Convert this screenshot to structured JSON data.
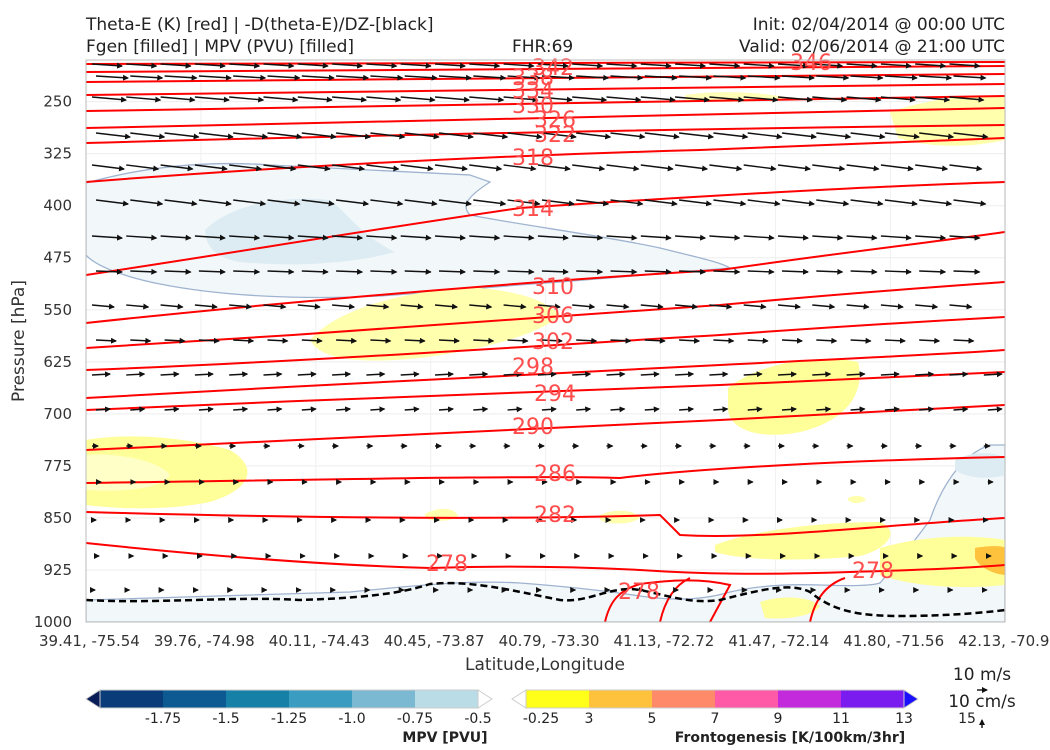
{
  "header": {
    "title_line1": "Theta-E (K) [red] | -D(theta-E)/DZ-[black]",
    "title_line2": "Fgen [filled] | MPV (PVU) [filled]",
    "fhr": "FHR:69",
    "init": "Init: 02/04/2014 @ 00:00 UTC",
    "valid": "Valid: 02/06/2014 @ 21:00 UTC"
  },
  "chart_data": {
    "type": "cross-section",
    "xlabel": "Latitude,Longitude",
    "ylabel": "Pressure [hPa]",
    "x_ticks": [
      "39.41, -75.54",
      "39.76, -74.98",
      "40.11, -74.43",
      "40.45, -73.87",
      "40.79, -73.30",
      "41.13, -72.72",
      "41.47, -72.14",
      "41.80, -71.56",
      "42.13, -70.97"
    ],
    "y_ticks": [
      250,
      325,
      400,
      475,
      550,
      625,
      700,
      775,
      850,
      925,
      1000
    ],
    "ylim": [
      1000,
      190
    ],
    "theta_e_contour_labels": [
      346,
      342,
      338,
      334,
      330,
      326,
      322,
      318,
      314,
      310,
      306,
      302,
      298,
      294,
      290,
      286,
      282,
      278,
      278,
      278
    ],
    "theta_e_color": "#ff0000",
    "mpv_colorbar": {
      "title": "MPV [PVU]",
      "ticks": [
        "-1.75",
        "-1.5",
        "-1.25",
        "-1.0",
        "-0.75",
        "-0.5",
        "-0.25"
      ],
      "colors": [
        "#081d58",
        "#0b3c7a",
        "#0d5a92",
        "#1780a7",
        "#3a9cc1",
        "#7ab9d1",
        "#b9dce6",
        "#ffffff"
      ]
    },
    "fgen_colorbar": {
      "title": "Frontogenesis [K/100km/3hr]",
      "ticks": [
        "3",
        "5",
        "7",
        "9",
        "11",
        "13",
        "15"
      ],
      "colors": [
        "#ffffff",
        "#ffff1a",
        "#ffc23d",
        "#ff8a6a",
        "#ff5aa8",
        "#c22adc",
        "#7a1cf0",
        "#1a10ff"
      ]
    },
    "wind_reference": {
      "horizontal": "10 m/s",
      "vertical": "10 cm/s"
    },
    "grid": true
  }
}
